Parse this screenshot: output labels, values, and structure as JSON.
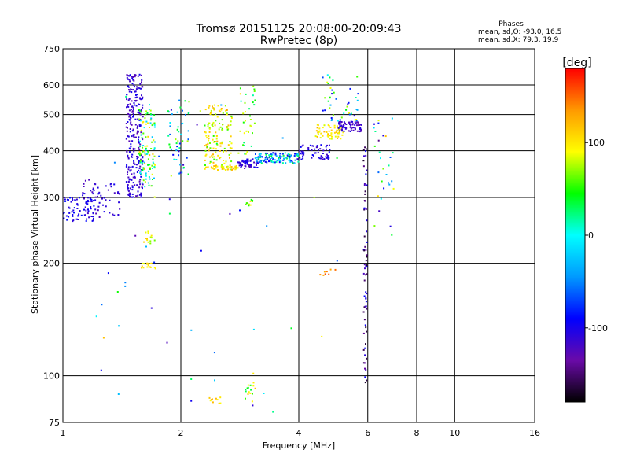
{
  "chart_data": {
    "type": "scatter",
    "title": "Tromsø 20151125 20:08:00-20:09:43",
    "subtitle": "RwPretec (8p)",
    "xlabel": "Frequency [MHz]",
    "ylabel": "Stationary phase Virtual Height [km]",
    "x_scale": "log",
    "y_scale": "log",
    "xlim": [
      1,
      16
    ],
    "ylim": [
      75,
      750
    ],
    "x_ticks": [
      1,
      2,
      4,
      6,
      8,
      10,
      16
    ],
    "y_ticks": [
      75,
      100,
      200,
      300,
      400,
      500,
      600,
      750
    ],
    "grid": true,
    "phase_info": {
      "heading": "Phases",
      "line1": "mean, sd,O: -93.0, 16.5",
      "line2": "mean, sd,X:  79.3, 19.9"
    },
    "colorbar": {
      "label": "[deg]",
      "range": [
        -180,
        180
      ],
      "ticks": [
        100,
        0,
        -100
      ],
      "colors": [
        "#000000",
        "#6a0aa8",
        "#0000ff",
        "#0099ff",
        "#00ffff",
        "#00ff00",
        "#ffff00",
        "#ff9900",
        "#ff0000"
      ]
    },
    "clusters": [
      {
        "f": [
          1.0,
          1.2
        ],
        "h": [
          258,
          300
        ],
        "p": [
          -115,
          -85
        ],
        "n": 70
      },
      {
        "f": [
          1.12,
          1.4
        ],
        "h": [
          265,
          340
        ],
        "p": [
          -125,
          -95
        ],
        "n": 60
      },
      {
        "f": [
          1.45,
          1.6
        ],
        "h": [
          300,
          640
        ],
        "p": [
          -130,
          -95
        ],
        "n": 260
      },
      {
        "f": [
          1.56,
          1.72
        ],
        "h": [
          320,
          520
        ],
        "p": [
          -30,
          120
        ],
        "n": 110
      },
      {
        "f": [
          1.6,
          1.72
        ],
        "h": [
          225,
          245
        ],
        "p": [
          60,
          120
        ],
        "n": 14
      },
      {
        "f": [
          1.58,
          1.72
        ],
        "h": [
          194,
          201
        ],
        "p": [
          80,
          130
        ],
        "n": 16
      },
      {
        "f": [
          1.85,
          2.1
        ],
        "h": [
          340,
          560
        ],
        "p": [
          -120,
          90
        ],
        "n": 50
      },
      {
        "f": [
          2.3,
          2.7
        ],
        "h": [
          355,
          530
        ],
        "p": [
          50,
          130
        ],
        "n": 140
      },
      {
        "f": [
          2.4,
          2.8
        ],
        "h": [
          355,
          365
        ],
        "p": [
          80,
          130
        ],
        "n": 35
      },
      {
        "f": [
          2.78,
          3.15
        ],
        "h": [
          358,
          380
        ],
        "p": [
          -125,
          -95
        ],
        "n": 55
      },
      {
        "f": [
          2.8,
          3.1
        ],
        "h": [
          390,
          600
        ],
        "p": [
          10,
          110
        ],
        "n": 35
      },
      {
        "f": [
          3.1,
          4.0
        ],
        "h": [
          370,
          395
        ],
        "p": [
          -110,
          40
        ],
        "n": 110
      },
      {
        "f": [
          4.0,
          4.8
        ],
        "h": [
          378,
          415
        ],
        "p": [
          -120,
          -90
        ],
        "n": 60
      },
      {
        "f": [
          4.4,
          5.2
        ],
        "h": [
          430,
          470
        ],
        "p": [
          80,
          130
        ],
        "n": 55
      },
      {
        "f": [
          5.0,
          5.8
        ],
        "h": [
          450,
          480
        ],
        "p": [
          -130,
          -100
        ],
        "n": 70
      },
      {
        "f": [
          4.6,
          5.7
        ],
        "h": [
          480,
          640
        ],
        "p": [
          -110,
          100
        ],
        "n": 45
      },
      {
        "f": [
          5.85,
          5.97
        ],
        "h": [
          95,
          430
        ],
        "p": [
          -170,
          -90
        ],
        "n": 70
      },
      {
        "f": [
          6.2,
          7.0
        ],
        "h": [
          235,
          500
        ],
        "p": [
          -160,
          120
        ],
        "n": 30
      },
      {
        "f": [
          2.35,
          2.55
        ],
        "h": [
          84,
          88
        ],
        "p": [
          80,
          130
        ],
        "n": 10
      },
      {
        "f": [
          2.9,
          3.1
        ],
        "h": [
          84,
          96
        ],
        "p": [
          30,
          120
        ],
        "n": 16
      },
      {
        "f": [
          2.9,
          3.05
        ],
        "h": [
          285,
          300
        ],
        "p": [
          40,
          110
        ],
        "n": 10
      },
      {
        "f": [
          4.5,
          5.0
        ],
        "h": [
          185,
          196
        ],
        "p": [
          110,
          160
        ],
        "n": 8
      },
      {
        "f": [
          1.2,
          5.5
        ],
        "h": [
          80,
          650
        ],
        "p": [
          -130,
          120
        ],
        "n": 50
      }
    ]
  }
}
